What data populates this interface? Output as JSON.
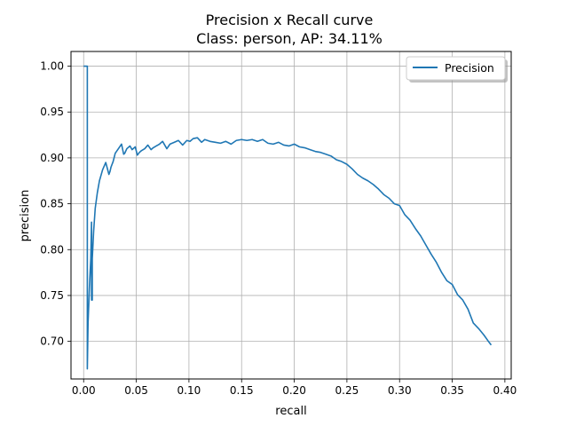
{
  "chart_data": {
    "type": "line",
    "title": "Precision x Recall curve",
    "subtitle": "Class: person, AP: 34.11%",
    "xlabel": "recall",
    "ylabel": "precision",
    "xlim": [
      -0.012,
      0.406
    ],
    "ylim": [
      0.659,
      1.016
    ],
    "xticks": [
      0.0,
      0.05,
      0.1,
      0.15,
      0.2,
      0.25,
      0.3,
      0.35,
      0.4
    ],
    "xtick_labels": [
      "0.00",
      "0.05",
      "0.10",
      "0.15",
      "0.20",
      "0.25",
      "0.30",
      "0.35",
      "0.40"
    ],
    "yticks": [
      0.7,
      0.75,
      0.8,
      0.85,
      0.9,
      0.95,
      1.0
    ],
    "ytick_labels": [
      "0.70",
      "0.75",
      "0.80",
      "0.85",
      "0.90",
      "0.95",
      "1.00"
    ],
    "grid": true,
    "legend_position": "top-right",
    "series": [
      {
        "name": "Precision",
        "color": "#1f77b4",
        "x": [
          0.0,
          0.001,
          0.0022,
          0.0022,
          0.0035,
          0.0035,
          0.0042,
          0.0055,
          0.0068,
          0.0075,
          0.0075,
          0.0082,
          0.0082,
          0.0095,
          0.011,
          0.013,
          0.015,
          0.018,
          0.021,
          0.024,
          0.025,
          0.026,
          0.028,
          0.03,
          0.033,
          0.036,
          0.038,
          0.039,
          0.041,
          0.044,
          0.046,
          0.049,
          0.051,
          0.053,
          0.055,
          0.058,
          0.061,
          0.064,
          0.066,
          0.069,
          0.072,
          0.075,
          0.079,
          0.082,
          0.086,
          0.09,
          0.094,
          0.098,
          0.101,
          0.104,
          0.108,
          0.112,
          0.115,
          0.12,
          0.125,
          0.13,
          0.135,
          0.14,
          0.145,
          0.15,
          0.155,
          0.16,
          0.165,
          0.17,
          0.175,
          0.18,
          0.185,
          0.19,
          0.195,
          0.2,
          0.205,
          0.21,
          0.215,
          0.22,
          0.225,
          0.23,
          0.235,
          0.24,
          0.245,
          0.25,
          0.255,
          0.26,
          0.265,
          0.27,
          0.275,
          0.28,
          0.285,
          0.29,
          0.295,
          0.3,
          0.305,
          0.31,
          0.315,
          0.32,
          0.325,
          0.33,
          0.335,
          0.34,
          0.345,
          0.35,
          0.355,
          0.36,
          0.365,
          0.37,
          0.375,
          0.38,
          0.385,
          0.387
        ],
        "y": [
          1.0,
          1.0,
          1.0,
          1.0,
          1.0,
          0.67,
          0.72,
          0.76,
          0.79,
          0.83,
          0.745,
          0.745,
          0.79,
          0.82,
          0.845,
          0.862,
          0.875,
          0.887,
          0.895,
          0.882,
          0.885,
          0.89,
          0.896,
          0.905,
          0.91,
          0.915,
          0.904,
          0.905,
          0.91,
          0.913,
          0.909,
          0.912,
          0.903,
          0.906,
          0.908,
          0.91,
          0.914,
          0.909,
          0.911,
          0.913,
          0.915,
          0.918,
          0.91,
          0.915,
          0.917,
          0.919,
          0.914,
          0.919,
          0.918,
          0.921,
          0.922,
          0.917,
          0.92,
          0.918,
          0.917,
          0.916,
          0.918,
          0.915,
          0.919,
          0.92,
          0.919,
          0.92,
          0.918,
          0.92,
          0.916,
          0.915,
          0.917,
          0.914,
          0.913,
          0.915,
          0.912,
          0.911,
          0.909,
          0.907,
          0.906,
          0.904,
          0.902,
          0.898,
          0.896,
          0.893,
          0.888,
          0.882,
          0.878,
          0.875,
          0.871,
          0.866,
          0.86,
          0.856,
          0.85,
          0.848,
          0.838,
          0.832,
          0.823,
          0.815,
          0.805,
          0.795,
          0.786,
          0.775,
          0.766,
          0.762,
          0.751,
          0.745,
          0.735,
          0.72,
          0.714,
          0.707,
          0.699,
          0.696
        ]
      }
    ]
  }
}
